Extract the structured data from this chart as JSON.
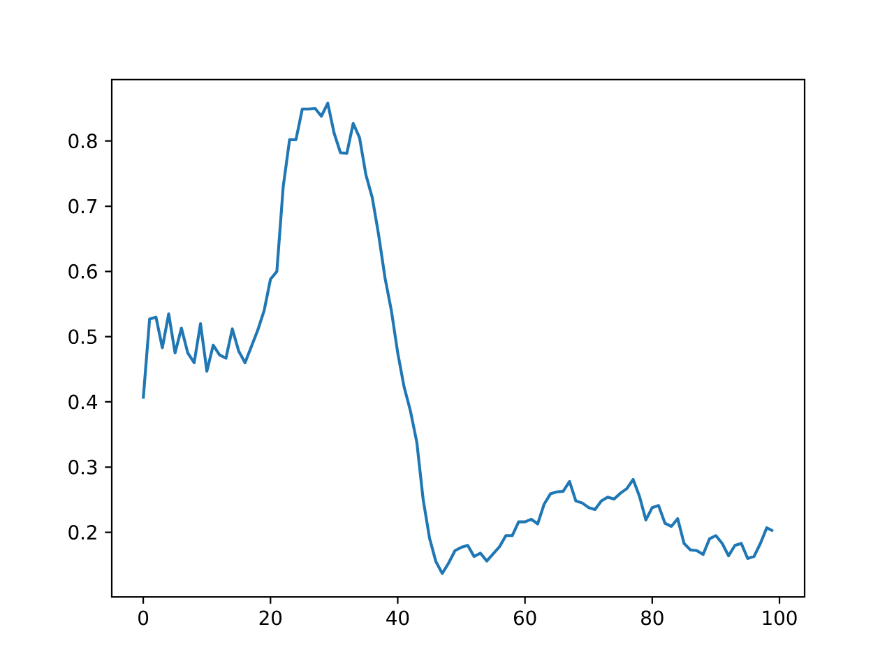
{
  "chart_data": {
    "type": "line",
    "color": "#1f77b4",
    "x": [
      0,
      1,
      2,
      3,
      4,
      5,
      6,
      7,
      8,
      9,
      10,
      11,
      12,
      13,
      14,
      15,
      16,
      17,
      18,
      19,
      20,
      21,
      22,
      23,
      24,
      25,
      26,
      27,
      28,
      29,
      30,
      31,
      32,
      33,
      34,
      35,
      36,
      37,
      38,
      39,
      40,
      41,
      42,
      43,
      44,
      45,
      46,
      47,
      48,
      49,
      50,
      51,
      52,
      53,
      54,
      55,
      56,
      57,
      58,
      59,
      60,
      61,
      62,
      63,
      64,
      65,
      66,
      67,
      68,
      69,
      70,
      71,
      72,
      73,
      74,
      75,
      76,
      77,
      78,
      79,
      80,
      81,
      82,
      83,
      84,
      85,
      86,
      87,
      88,
      89,
      90,
      91,
      92,
      93,
      94,
      95,
      96,
      97,
      98,
      99
    ],
    "values": [
      0.405,
      0.527,
      0.53,
      0.483,
      0.535,
      0.475,
      0.513,
      0.475,
      0.46,
      0.52,
      0.447,
      0.487,
      0.472,
      0.467,
      0.512,
      0.478,
      0.46,
      0.485,
      0.51,
      0.54,
      0.588,
      0.6,
      0.73,
      0.802,
      0.802,
      0.849,
      0.849,
      0.85,
      0.838,
      0.858,
      0.812,
      0.782,
      0.781,
      0.827,
      0.805,
      0.748,
      0.713,
      0.656,
      0.59,
      0.54,
      0.475,
      0.423,
      0.386,
      0.338,
      0.25,
      0.191,
      0.155,
      0.137,
      0.153,
      0.172,
      0.177,
      0.18,
      0.163,
      0.168,
      0.156,
      0.167,
      0.178,
      0.195,
      0.195,
      0.216,
      0.216,
      0.22,
      0.213,
      0.243,
      0.259,
      0.262,
      0.263,
      0.278,
      0.248,
      0.245,
      0.238,
      0.235,
      0.248,
      0.254,
      0.251,
      0.26,
      0.267,
      0.281,
      0.255,
      0.219,
      0.238,
      0.241,
      0.214,
      0.209,
      0.221,
      0.183,
      0.173,
      0.172,
      0.166,
      0.19,
      0.195,
      0.183,
      0.164,
      0.18,
      0.183,
      0.16,
      0.163,
      0.183,
      0.207,
      0.202
    ],
    "xlim": [
      -4.95,
      103.95
    ],
    "ylim": [
      0.101,
      0.894
    ],
    "xticks": [
      0,
      20,
      40,
      60,
      80,
      100
    ],
    "yticks": [
      0.2,
      0.3,
      0.4,
      0.5,
      0.6,
      0.7,
      0.8
    ]
  }
}
